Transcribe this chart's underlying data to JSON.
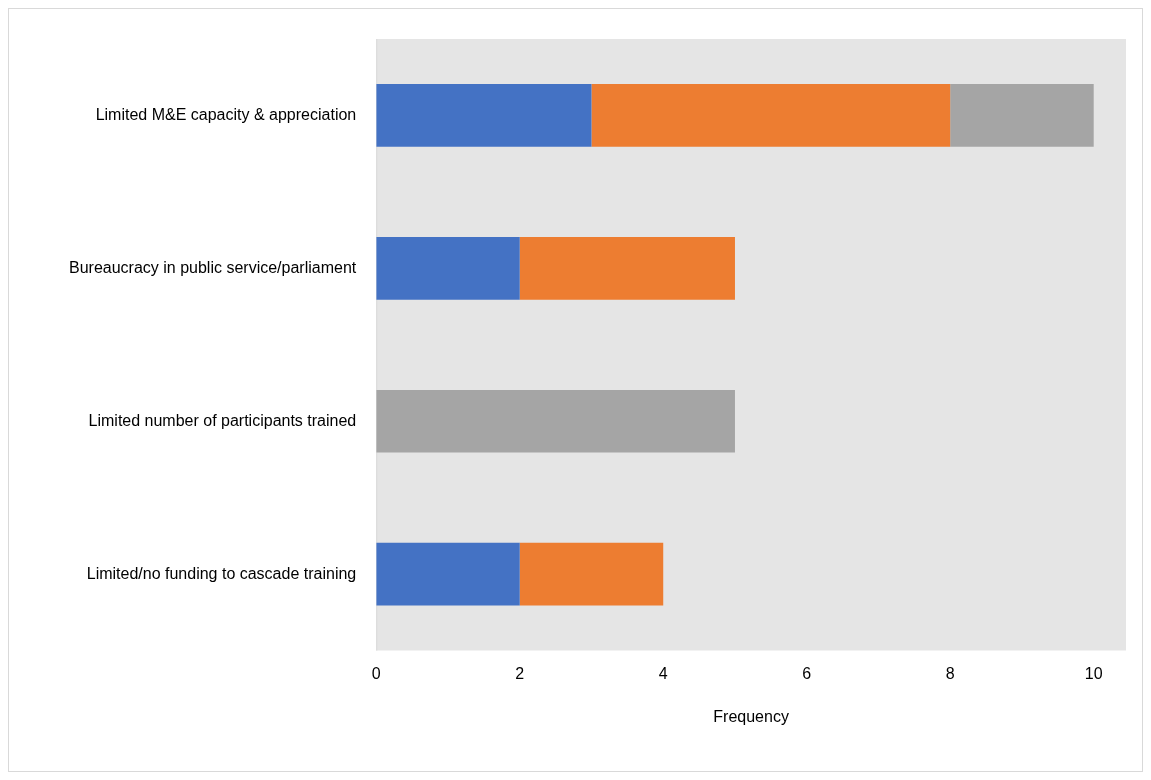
{
  "chart_data": {
    "type": "bar",
    "orientation": "horizontal",
    "stacked": true,
    "xlabel": "Frequency",
    "categories": [
      "Limited M&E capacity & appreciation",
      "Bureaucracy in public service/parliament",
      "Limited number of participants trained",
      "Limited/no funding to cascade training"
    ],
    "series": [
      {
        "color": "#4472c4",
        "values": [
          3,
          2,
          0,
          2
        ]
      },
      {
        "color": "#ed7d31",
        "values": [
          5,
          3,
          0,
          2
        ]
      },
      {
        "color": "#a5a5a5",
        "values": [
          2,
          0,
          5,
          0
        ]
      }
    ],
    "xlim": [
      0,
      10.45
    ],
    "xticks": [
      0,
      2,
      4,
      6,
      8,
      10
    ],
    "grid": false,
    "legend": false
  }
}
